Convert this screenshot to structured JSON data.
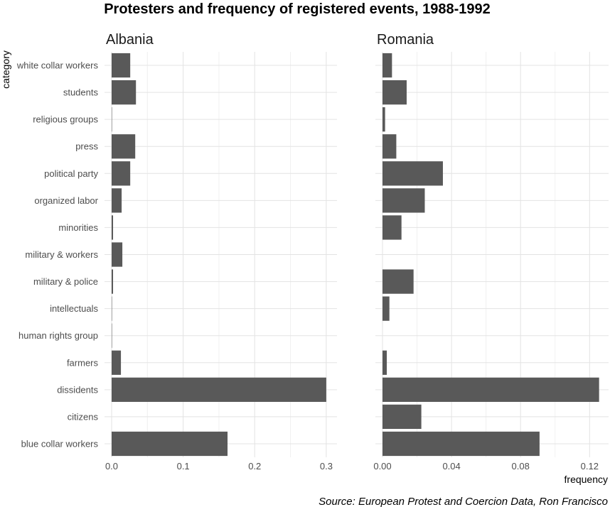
{
  "chart_data": {
    "type": "bar",
    "orientation": "horizontal",
    "title": "Protesters and frequency of registered events, 1988-1992",
    "xlabel": "frequency",
    "ylabel": "category",
    "caption": "Source: European Protest and Coercion Data, Ron Francisco",
    "categories": [
      "white collar workers",
      "students",
      "religious groups",
      "press",
      "political party",
      "organized labor",
      "minorities",
      "military & workers",
      "military & police",
      "intellectuals",
      "human rights group",
      "farmers",
      "dissidents",
      "citizens",
      "blue collar workers"
    ],
    "panels": [
      {
        "name": "Albania",
        "xlim": [
          0,
          0.315
        ],
        "ticks": [
          0.0,
          0.1,
          0.2,
          0.3
        ],
        "tick_labels": [
          "0.0",
          "0.1",
          "0.2",
          "0.3"
        ],
        "values": [
          0.026,
          0.034,
          0.0005,
          0.033,
          0.026,
          0.014,
          0.002,
          0.015,
          0.002,
          0.0005,
          0.0005,
          0.013,
          0.3,
          0.0,
          0.162
        ]
      },
      {
        "name": "Romania",
        "xlim": [
          0,
          0.131
        ],
        "ticks": [
          0.0,
          0.04,
          0.08,
          0.12
        ],
        "tick_labels": [
          "0.00",
          "0.04",
          "0.08",
          "0.12"
        ],
        "values": [
          0.0055,
          0.014,
          0.0015,
          0.008,
          0.035,
          0.0245,
          0.011,
          0.0,
          0.018,
          0.004,
          0.0,
          0.0025,
          0.1255,
          0.0225,
          0.091
        ]
      }
    ]
  }
}
